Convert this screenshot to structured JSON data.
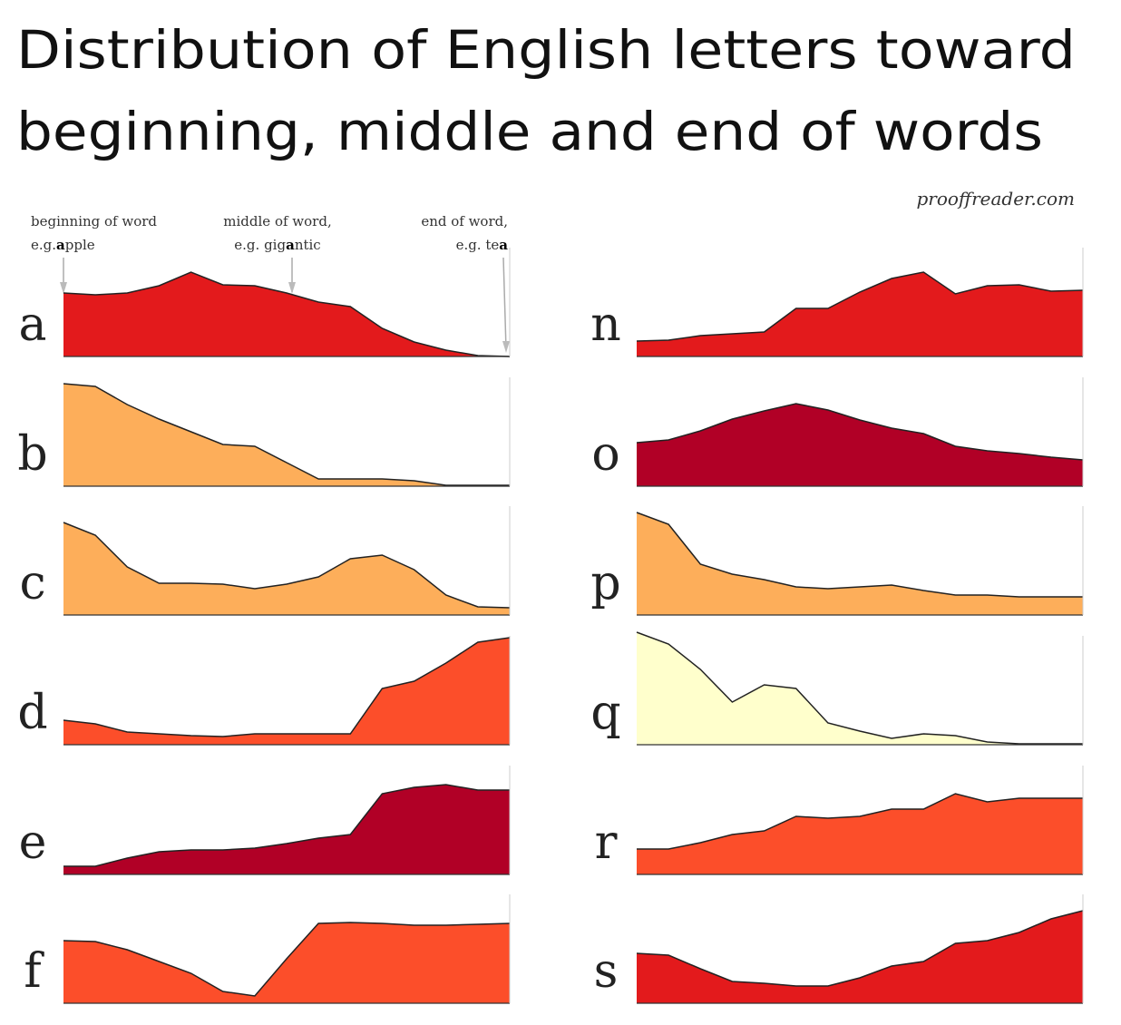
{
  "title": [
    "Distribution of English letters toward",
    "beginning, middle and end of words"
  ],
  "source": "prooffreader.com",
  "annotations": [
    {
      "text1": "beginning of word",
      "text2": "e.g.",
      "bold": "a",
      "text3": "pple"
    },
    {
      "text1": "middle of word,",
      "text2": "e.g. gig",
      "bold": "a",
      "text3": "ntic"
    },
    {
      "text1": "end of word,",
      "text2": "e.g. te",
      "bold": "a"
    }
  ],
  "chart_data": [
    {
      "type": "area",
      "title": "a",
      "color": "#e31a1c",
      "ylim": [
        0,
        125
      ],
      "values": [
        70,
        68,
        70,
        78,
        93,
        79,
        78,
        70,
        60,
        55,
        31,
        16,
        7,
        1,
        0
      ]
    },
    {
      "type": "area",
      "title": "b",
      "color": "#fdae5a",
      "ylim": [
        0,
        125
      ],
      "values": [
        113,
        110,
        90,
        74,
        60,
        46,
        44,
        26,
        8,
        8,
        8,
        6,
        1,
        1,
        1
      ]
    },
    {
      "type": "area",
      "title": "c",
      "color": "#fdae5a",
      "ylim": [
        0,
        125
      ],
      "values": [
        102,
        88,
        53,
        35,
        35,
        34,
        29,
        34,
        42,
        62,
        66,
        50,
        22,
        9,
        8
      ]
    },
    {
      "type": "area",
      "title": "d",
      "color": "#fc4e2a",
      "ylim": [
        0,
        125
      ],
      "values": [
        27,
        23,
        14,
        12,
        10,
        9,
        12,
        12,
        12,
        12,
        62,
        70,
        90,
        113,
        118
      ]
    },
    {
      "type": "area",
      "title": "e",
      "color": "#b10026",
      "ylim": [
        0,
        125
      ],
      "values": [
        9,
        9,
        18,
        25,
        27,
        27,
        29,
        34,
        40,
        44,
        89,
        96,
        99,
        93,
        93
      ]
    },
    {
      "type": "area",
      "title": "f",
      "color": "#fc4e2a",
      "ylim": [
        0,
        125
      ],
      "values": [
        69,
        68,
        59,
        46,
        33,
        13,
        8,
        49,
        88,
        89,
        88,
        86,
        86,
        87,
        88
      ]
    },
    {
      "type": "area",
      "title": "n",
      "color": "#e31a1c",
      "ylim": [
        0,
        125
      ],
      "values": [
        17,
        18,
        23,
        25,
        27,
        53,
        53,
        71,
        86,
        93,
        69,
        78,
        79,
        72,
        73
      ]
    },
    {
      "type": "area",
      "title": "o",
      "color": "#b10026",
      "ylim": [
        0,
        125
      ],
      "values": [
        48,
        51,
        61,
        74,
        83,
        91,
        84,
        73,
        64,
        58,
        44,
        39,
        36,
        32,
        29
      ]
    },
    {
      "type": "area",
      "title": "p",
      "color": "#fdae5a",
      "ylim": [
        0,
        125
      ],
      "values": [
        113,
        100,
        56,
        45,
        39,
        31,
        29,
        31,
        33,
        27,
        22,
        22,
        20,
        20,
        20
      ]
    },
    {
      "type": "area",
      "title": "q",
      "color": "#ffffcc",
      "ylim": [
        0,
        125
      ],
      "values": [
        124,
        111,
        83,
        47,
        66,
        62,
        24,
        15,
        7,
        12,
        10,
        3,
        1,
        1,
        1
      ]
    },
    {
      "type": "area",
      "title": "r",
      "color": "#fc4e2a",
      "ylim": [
        0,
        125
      ],
      "values": [
        28,
        28,
        35,
        44,
        48,
        64,
        62,
        64,
        72,
        72,
        89,
        80,
        84,
        84,
        84
      ]
    },
    {
      "type": "area",
      "title": "s",
      "color": "#e31a1c",
      "ylim": [
        0,
        125
      ],
      "values": [
        55,
        53,
        38,
        24,
        22,
        19,
        19,
        28,
        41,
        46,
        66,
        69,
        78,
        93,
        102
      ]
    }
  ]
}
